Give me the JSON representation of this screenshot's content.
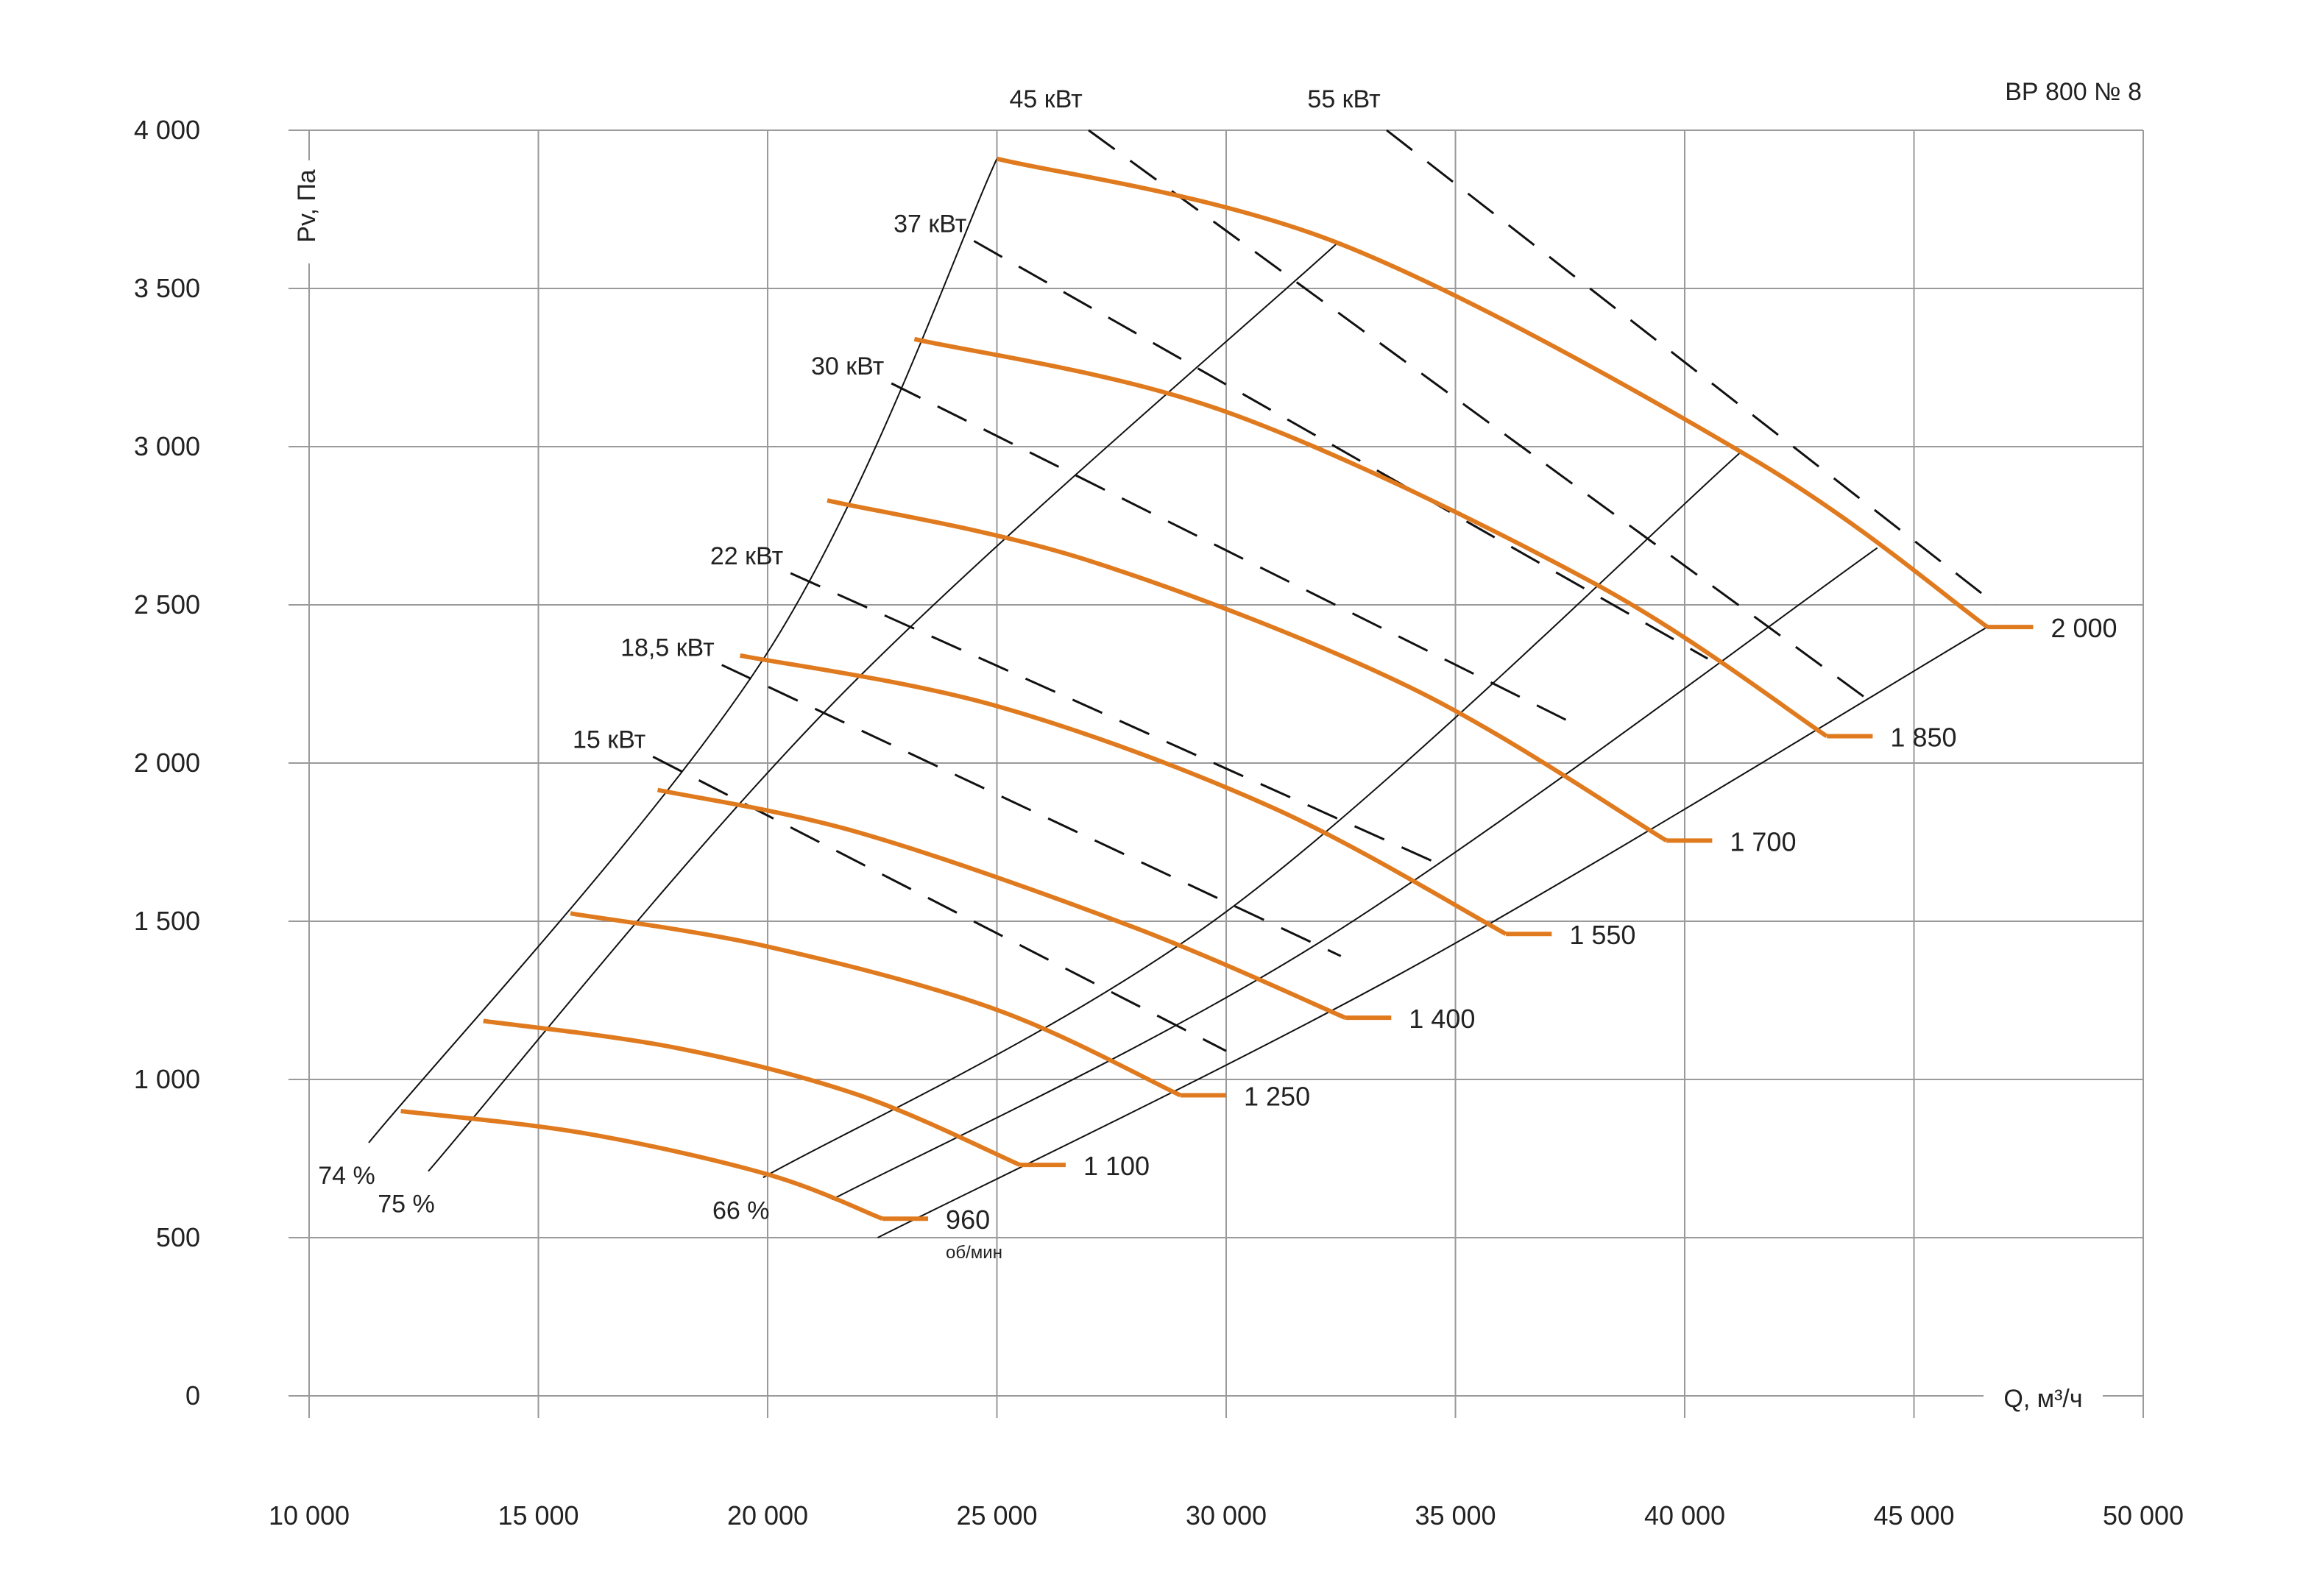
{
  "chart_data": {
    "type": "line",
    "title": "ВР 800 № 8",
    "xlabel": "Q, м³/ч",
    "ylabel": "Pv, Па",
    "xlim": [
      10000,
      50000
    ],
    "ylim": [
      0,
      4000
    ],
    "x_ticks": [
      10000,
      15000,
      20000,
      25000,
      30000,
      35000,
      40000,
      45000,
      50000
    ],
    "x_tick_labels": [
      "10 000",
      "15 000",
      "20 000",
      "25 000",
      "30 000",
      "35 000",
      "40 000",
      "45 000",
      "50 000"
    ],
    "y_ticks": [
      0,
      500,
      1000,
      1500,
      2000,
      2500,
      3000,
      3500,
      4000
    ],
    "y_tick_labels": [
      "0",
      "500",
      "1 000",
      "1 500",
      "2 000",
      "2 500",
      "3 000",
      "3 500",
      "4 000"
    ],
    "grid": true,
    "series_color": "#e07a1f",
    "rpm_unit": "об/мин",
    "rpm_curves": [
      {
        "label": "960",
        "points": [
          [
            12000,
            900
          ],
          [
            16000,
            830
          ],
          [
            20000,
            700
          ],
          [
            22500,
            560
          ]
        ],
        "end": [
          23500,
          560
        ]
      },
      {
        "label": "1 100",
        "points": [
          [
            13800,
            1185
          ],
          [
            18000,
            1100
          ],
          [
            22000,
            950
          ],
          [
            25500,
            730
          ]
        ],
        "end": [
          26500,
          730
        ]
      },
      {
        "label": "1 250",
        "points": [
          [
            15700,
            1525
          ],
          [
            20000,
            1420
          ],
          [
            25000,
            1220
          ],
          [
            29000,
            950
          ]
        ],
        "end": [
          30000,
          950
        ]
      },
      {
        "label": "1 400",
        "points": [
          [
            17600,
            1915
          ],
          [
            22000,
            1780
          ],
          [
            28000,
            1480
          ],
          [
            32600,
            1195
          ]
        ],
        "end": [
          33600,
          1195
        ]
      },
      {
        "label": "1 550",
        "points": [
          [
            19400,
            2340
          ],
          [
            25000,
            2180
          ],
          [
            31000,
            1860
          ],
          [
            36100,
            1460
          ]
        ],
        "end": [
          37100,
          1460
        ]
      },
      {
        "label": "1 700",
        "points": [
          [
            21300,
            2830
          ],
          [
            27000,
            2640
          ],
          [
            34000,
            2240
          ],
          [
            39600,
            1755
          ]
        ],
        "end": [
          40600,
          1755
        ]
      },
      {
        "label": "1 850",
        "points": [
          [
            23200,
            3340
          ],
          [
            30000,
            3110
          ],
          [
            38000,
            2570
          ],
          [
            43100,
            2085
          ]
        ],
        "end": [
          44100,
          2085
        ]
      },
      {
        "label": "2 000",
        "points": [
          [
            25000,
            3910
          ],
          [
            32500,
            3640
          ],
          [
            41500,
            2960
          ],
          [
            46600,
            2430
          ]
        ],
        "end": [
          47600,
          2430
        ]
      }
    ],
    "efficiency_lines": [
      {
        "label": "74 %",
        "points": [
          [
            11300,
            800
          ],
          [
            20000,
            2350
          ],
          [
            25000,
            3910
          ]
        ]
      },
      {
        "label": "75 %",
        "points": [
          [
            12600,
            710
          ],
          [
            21500,
            2200
          ],
          [
            32400,
            3640
          ]
        ]
      },
      {
        "label": "66 %",
        "points": [
          [
            19900,
            690
          ],
          [
            30000,
            1530
          ],
          [
            41200,
            2980
          ]
        ]
      },
      {
        "label": "",
        "points": [
          [
            21400,
            620
          ],
          [
            32000,
            1430
          ],
          [
            44200,
            2680
          ]
        ]
      },
      {
        "label": "",
        "points": [
          [
            22400,
            500
          ],
          [
            34000,
            1350
          ],
          [
            46600,
            2430
          ]
        ]
      }
    ],
    "power_lines": [
      {
        "label": "15 кВт",
        "points": [
          [
            17500,
            2020
          ],
          [
            30000,
            1090
          ]
        ]
      },
      {
        "label": "18,5 кВт",
        "points": [
          [
            19000,
            2310
          ],
          [
            32500,
            1390
          ]
        ]
      },
      {
        "label": "22 кВт",
        "points": [
          [
            20500,
            2600
          ],
          [
            34500,
            1690
          ]
        ]
      },
      {
        "label": "30 кВт",
        "points": [
          [
            22700,
            3200
          ],
          [
            37500,
            2130
          ]
        ]
      },
      {
        "label": "37 кВт",
        "points": [
          [
            24500,
            3650
          ],
          [
            40500,
            2330
          ]
        ]
      },
      {
        "label": "45 кВт",
        "points": [
          [
            27000,
            4000
          ],
          [
            44000,
            2200
          ]
        ]
      },
      {
        "label": "55 кВт",
        "points": [
          [
            33500,
            4000
          ],
          [
            46800,
            2500
          ]
        ]
      }
    ]
  }
}
